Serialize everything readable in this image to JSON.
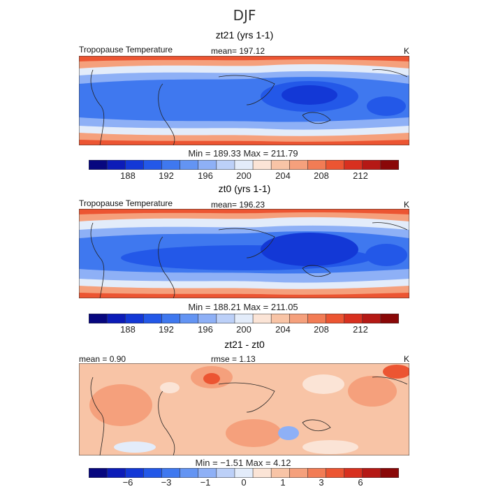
{
  "figure": {
    "season": "DJF",
    "unit": "K"
  },
  "panels": [
    {
      "title": "zt21 (yrs 1-1)",
      "variable": "Tropopause Temperature",
      "stat": "mean= 197.12",
      "unit": "K",
      "minmax": "Min =  189.33  Max =  211.79",
      "ticks": [
        "188",
        "192",
        "196",
        "200",
        "204",
        "208",
        "212"
      ]
    },
    {
      "title": "zt0 (yrs 1-1)",
      "variable": "Tropopause Temperature",
      "stat": "mean= 196.23",
      "unit": "K",
      "minmax": "Min =  188.21  Max =  211.05",
      "ticks": [
        "188",
        "192",
        "196",
        "200",
        "204",
        "208",
        "212"
      ]
    },
    {
      "title": "zt21 - zt0",
      "variable": "mean =   0.90",
      "stat": "rmse =    1.13",
      "unit": "K",
      "minmax": "Min =  −1.51  Max =    4.12",
      "ticks": [
        "−6",
        "−3",
        "−1",
        "0",
        "1",
        "3",
        "6"
      ]
    }
  ],
  "colorbar": {
    "colors": [
      "#07077f",
      "#0c1cb8",
      "#1338d6",
      "#2358e8",
      "#3f78ef",
      "#6394f3",
      "#8eb0f6",
      "#bcd0f8",
      "#e3ecfa",
      "#fbe4d6",
      "#f8c4a6",
      "#f5a07c",
      "#f27c55",
      "#ec5532",
      "#d8301f",
      "#b51915",
      "#8a0808"
    ]
  }
}
